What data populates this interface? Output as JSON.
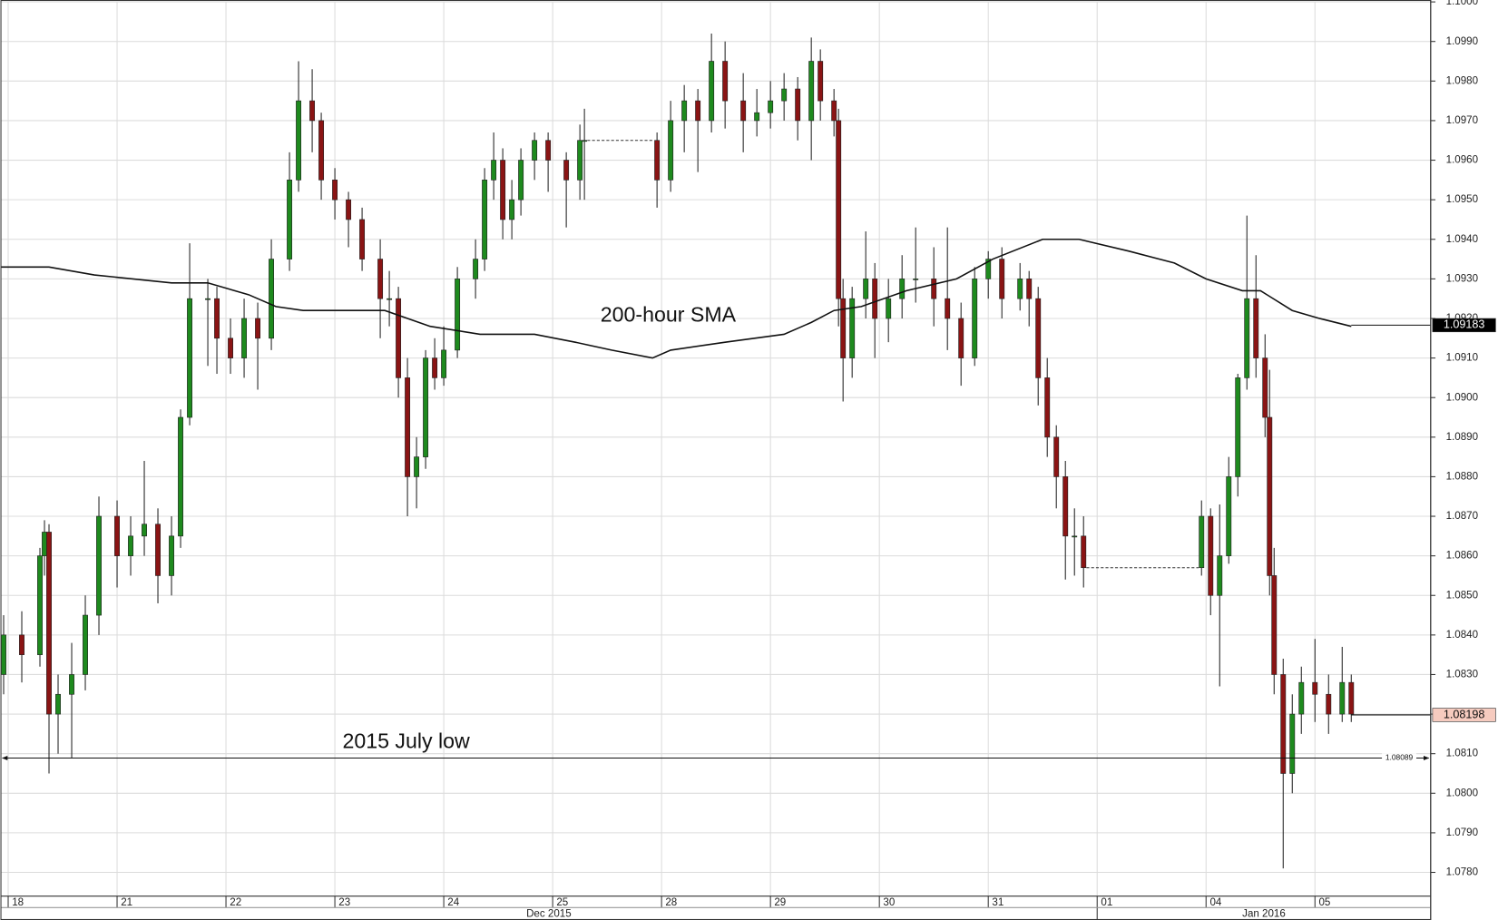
{
  "chart_data": {
    "type": "candlestick",
    "xlim": [
      -1.7,
      313.5
    ],
    "xticks": [
      {
        "value": 0,
        "label": "18"
      },
      {
        "value": 24,
        "label": "21"
      },
      {
        "value": 48,
        "label": "22"
      },
      {
        "value": 72,
        "label": "23"
      },
      {
        "value": 96,
        "label": "24"
      },
      {
        "value": 120,
        "label": "25"
      },
      {
        "value": 144,
        "label": "28"
      },
      {
        "value": 168,
        "label": "29"
      },
      {
        "value": 192,
        "label": "30"
      },
      {
        "value": 216,
        "label": "31"
      },
      {
        "value": 240,
        "label": "01"
      },
      {
        "value": 264,
        "label": "04"
      },
      {
        "value": 288,
        "label": "05"
      }
    ],
    "months": [
      "Dec 2015",
      "Jan 2016"
    ],
    "ylim": [
      1.0774,
      1.1
    ],
    "yticks": [
      {
        "value": 1.078,
        "label": "1.0780"
      },
      {
        "value": 1.079,
        "label": "1.0790"
      },
      {
        "value": 1.08,
        "label": "1.0800"
      },
      {
        "value": 1.081,
        "label": "1.0810"
      },
      {
        "value": 1.082,
        "label": "1.0820"
      },
      {
        "value": 1.083,
        "label": "1.0830"
      },
      {
        "value": 1.084,
        "label": "1.0840"
      },
      {
        "value": 1.085,
        "label": "1.0850"
      },
      {
        "value": 1.086,
        "label": "1.0860"
      },
      {
        "value": 1.087,
        "label": "1.0870"
      },
      {
        "value": 1.088,
        "label": "1.0880"
      },
      {
        "value": 1.089,
        "label": "1.0890"
      },
      {
        "value": 1.09,
        "label": "1.0900"
      },
      {
        "value": 1.091,
        "label": "1.0910"
      },
      {
        "value": 1.092,
        "label": "1.0920"
      },
      {
        "value": 1.093,
        "label": "1.0930"
      },
      {
        "value": 1.094,
        "label": "1.0940"
      },
      {
        "value": 1.095,
        "label": "1.0950"
      },
      {
        "value": 1.096,
        "label": "1.0960"
      },
      {
        "value": 1.097,
        "label": "1.0970"
      },
      {
        "value": 1.098,
        "label": "1.0980"
      },
      {
        "value": 1.099,
        "label": "1.0990"
      },
      {
        "value": 1.1,
        "label": "1.1000"
      }
    ],
    "grid": true,
    "up_color": "#1e8a1e",
    "down_color": "#8a1414",
    "x": [
      -1,
      3,
      7,
      8,
      9,
      11,
      14,
      17,
      20,
      24,
      27,
      30,
      33,
      36,
      38,
      40,
      44,
      46,
      49,
      52,
      55,
      58,
      62,
      64,
      67,
      69,
      72,
      75,
      78,
      82,
      84,
      86,
      88,
      90,
      92,
      94,
      96,
      99,
      103,
      105,
      107,
      109,
      111,
      113,
      116,
      119,
      123,
      126,
      127,
      143,
      146,
      149,
      152,
      155,
      158,
      162,
      165,
      168,
      171,
      174,
      177,
      179,
      182,
      183,
      184,
      186,
      189,
      191,
      194,
      197,
      200,
      204,
      207,
      210,
      213,
      216,
      219,
      223,
      225,
      227,
      229,
      231,
      233,
      235,
      237,
      263,
      265,
      267,
      269,
      271,
      273,
      275,
      277,
      278,
      279,
      281,
      283,
      285,
      288,
      291,
      294,
      296
    ],
    "open": [
      1.083,
      1.084,
      1.0835,
      1.086,
      1.0866,
      1.082,
      1.0825,
      1.083,
      1.0845,
      1.087,
      1.086,
      1.0865,
      1.0868,
      1.0855,
      1.0865,
      1.0895,
      1.0925,
      1.0925,
      1.0915,
      1.091,
      1.092,
      1.0915,
      1.0935,
      1.0955,
      1.0975,
      1.097,
      1.0955,
      1.095,
      1.0945,
      1.0935,
      1.0925,
      1.0925,
      1.0905,
      1.088,
      1.0885,
      1.091,
      1.0905,
      1.0912,
      1.093,
      1.0935,
      1.0955,
      1.096,
      1.0945,
      1.095,
      1.096,
      1.0965,
      1.096,
      1.0955,
      1.0965,
      1.0965,
      1.0955,
      1.097,
      1.0975,
      1.097,
      1.0985,
      1.0975,
      1.097,
      1.0972,
      1.0975,
      1.0978,
      1.097,
      1.0985,
      1.0975,
      1.097,
      1.0925,
      1.091,
      1.0925,
      1.093,
      1.092,
      1.0925,
      1.093,
      1.093,
      1.0925,
      1.092,
      1.091,
      1.093,
      1.0935,
      1.0925,
      1.093,
      1.0925,
      1.0905,
      1.089,
      1.088,
      1.0865,
      1.0865,
      1.0857,
      1.087,
      1.085,
      1.086,
      1.088,
      1.0905,
      1.0925,
      1.091,
      1.0895,
      1.0855,
      1.083,
      1.0805,
      1.082,
      1.0828,
      1.0825,
      1.082,
      1.0828
    ],
    "high": [
      1.0845,
      1.0846,
      1.0862,
      1.0869,
      1.0868,
      1.083,
      1.0838,
      1.085,
      1.0875,
      1.0874,
      1.087,
      1.0884,
      1.0872,
      1.087,
      1.0897,
      1.0939,
      1.093,
      1.0928,
      1.092,
      1.0925,
      1.0924,
      1.094,
      1.0962,
      1.0985,
      1.0983,
      1.0972,
      1.0958,
      1.0952,
      1.0948,
      1.094,
      1.0932,
      1.0928,
      1.091,
      1.089,
      1.0912,
      1.0915,
      1.0918,
      1.0933,
      1.094,
      1.0958,
      1.0967,
      1.0963,
      1.0955,
      1.0963,
      1.0967,
      1.0967,
      1.0962,
      1.0969,
      1.0973,
      1.0967,
      1.0975,
      1.0979,
      1.0978,
      1.0992,
      1.099,
      1.0982,
      1.0978,
      1.098,
      1.0982,
      1.0981,
      1.0991,
      1.0988,
      1.0978,
      1.0973,
      1.093,
      1.0928,
      1.0942,
      1.0934,
      1.093,
      1.0936,
      1.0943,
      1.0938,
      1.0943,
      1.0924,
      1.0933,
      1.0937,
      1.0938,
      1.0934,
      1.0932,
      1.0928,
      1.091,
      1.0893,
      1.0884,
      1.0872,
      1.087,
      1.0874,
      1.0872,
      1.0873,
      1.0885,
      1.0906,
      1.0946,
      1.0936,
      1.0916,
      1.0907,
      1.0862,
      1.0834,
      1.0825,
      1.0832,
      1.0839,
      1.083,
      1.0837,
      1.083
    ],
    "low": [
      1.0825,
      1.0828,
      1.0832,
      1.0855,
      1.0805,
      1.081,
      1.0809,
      1.0826,
      1.084,
      1.0852,
      1.0855,
      1.086,
      1.0848,
      1.085,
      1.0862,
      1.0893,
      1.0908,
      1.0906,
      1.0906,
      1.0905,
      1.0902,
      1.0912,
      1.0932,
      1.0952,
      1.0962,
      1.095,
      1.0945,
      1.0938,
      1.0932,
      1.0915,
      1.0918,
      1.09,
      1.087,
      1.0872,
      1.0882,
      1.0902,
      1.0903,
      1.091,
      1.0925,
      1.0932,
      1.095,
      1.094,
      1.094,
      1.0946,
      1.0955,
      1.0952,
      1.0943,
      1.095,
      1.095,
      1.0948,
      1.0952,
      1.0962,
      1.0957,
      1.0967,
      1.0968,
      1.0962,
      1.0966,
      1.0968,
      1.097,
      1.0965,
      1.096,
      1.097,
      1.0966,
      1.0918,
      1.0899,
      1.0905,
      1.092,
      1.091,
      1.0914,
      1.092,
      1.0924,
      1.0918,
      1.0912,
      1.0903,
      1.0908,
      1.0925,
      1.092,
      1.0922,
      1.0918,
      1.0898,
      1.0885,
      1.0872,
      1.0854,
      1.0855,
      1.0852,
      1.0855,
      1.0845,
      1.0827,
      1.0858,
      1.0875,
      1.0902,
      1.0905,
      1.089,
      1.085,
      1.0825,
      1.0781,
      1.08,
      1.0815,
      1.0818,
      1.0815,
      1.0818,
      1.0818
    ],
    "close": [
      1.084,
      1.0835,
      1.086,
      1.0866,
      1.082,
      1.0825,
      1.083,
      1.0845,
      1.087,
      1.086,
      1.0865,
      1.0868,
      1.0855,
      1.0865,
      1.0895,
      1.0925,
      1.0925,
      1.0915,
      1.091,
      1.092,
      1.0915,
      1.0935,
      1.0955,
      1.0975,
      1.097,
      1.0955,
      1.095,
      1.0945,
      1.0935,
      1.0925,
      1.0925,
      1.0905,
      1.088,
      1.0885,
      1.091,
      1.0905,
      1.0912,
      1.093,
      1.0935,
      1.0955,
      1.096,
      1.0945,
      1.095,
      1.096,
      1.0965,
      1.096,
      1.0955,
      1.0965,
      1.0965,
      1.0955,
      1.097,
      1.0975,
      1.097,
      1.0985,
      1.0975,
      1.097,
      1.0972,
      1.0975,
      1.0978,
      1.097,
      1.0985,
      1.0975,
      1.097,
      1.0925,
      1.091,
      1.0925,
      1.093,
      1.092,
      1.0925,
      1.093,
      1.093,
      1.0925,
      1.092,
      1.091,
      1.093,
      1.0935,
      1.0925,
      1.093,
      1.0925,
      1.0905,
      1.089,
      1.088,
      1.0865,
      1.0865,
      1.0857,
      1.087,
      1.085,
      1.086,
      1.088,
      1.0905,
      1.0925,
      1.091,
      1.0895,
      1.0855,
      1.083,
      1.0805,
      1.082,
      1.0828,
      1.0825,
      1.082,
      1.0828,
      1.082
    ],
    "sma": {
      "name": "200-hour SMA",
      "color": "#111111",
      "x": [
        -1.7,
        9,
        19,
        36,
        44,
        53,
        59,
        65,
        72,
        83,
        93,
        104,
        116,
        125,
        133,
        142,
        146,
        158,
        171,
        177,
        182,
        188,
        198,
        209,
        217,
        228,
        236,
        247,
        257,
        264,
        272,
        276,
        283,
        289,
        296
      ],
      "values": [
        1.0933,
        1.0933,
        1.0931,
        1.0929,
        1.0929,
        1.0926,
        1.0923,
        1.0922,
        1.0922,
        1.0922,
        1.0918,
        1.0916,
        1.0916,
        1.0914,
        1.0912,
        1.091,
        1.0912,
        1.0914,
        1.0916,
        1.0919,
        1.0922,
        1.0923,
        1.0927,
        1.093,
        1.0935,
        1.094,
        1.094,
        1.0937,
        1.0934,
        1.093,
        1.0927,
        1.0927,
        1.0922,
        1.092,
        1.0918
      ]
    },
    "support": {
      "name": "2015 July low",
      "value": 1.08089,
      "label": "1.08089"
    },
    "last_sma": {
      "value": 1.09183,
      "label": "1.09183"
    },
    "last_close": {
      "value": 1.08198,
      "label": "1.08198"
    }
  }
}
